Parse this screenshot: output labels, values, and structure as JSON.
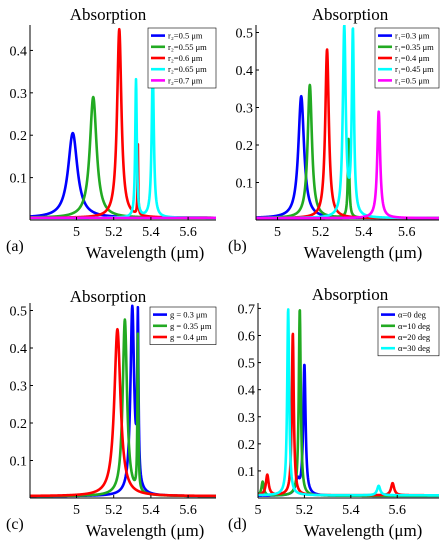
{
  "figure": {
    "panels": [
      {
        "id": "a",
        "label": "(a)"
      },
      {
        "id": "b",
        "label": "(b)"
      },
      {
        "id": "c",
        "label": "(c)"
      },
      {
        "id": "d",
        "label": "(d)"
      }
    ]
  },
  "colors": {
    "blue": "#0000ff",
    "green": "#22aa22",
    "red": "#ff0000",
    "cyan": "#00ffff",
    "magenta": "#ff00ff"
  },
  "chart_data": [
    {
      "type": "line",
      "panel": "(a)",
      "title": "Absorption",
      "xlabel": "Wavelength (μm)",
      "ylabel": "",
      "xlim": [
        4.75,
        5.75
      ],
      "ylim": [
        0,
        0.46
      ],
      "xticks": [
        5,
        5.2,
        5.4,
        5.6
      ],
      "xtick_labels": [
        "5",
        "5.2",
        "5.4",
        "5.6"
      ],
      "yticks": [
        0.1,
        0.2,
        0.3,
        0.4
      ],
      "ytick_labels": [
        "0.1",
        "0.2",
        "0.3",
        "0.4"
      ],
      "legend_position": "top-right",
      "grid": false,
      "series": [
        {
          "name": "r₂=0.5 μm",
          "color": "#0000ff",
          "peaks": [
            {
              "x": 4.98,
              "y": 0.205,
              "w": 0.03
            }
          ],
          "baseline": 0.005
        },
        {
          "name": "r₂=0.55 μm",
          "color": "#22aa22",
          "peaks": [
            {
              "x": 5.09,
              "y": 0.29,
              "w": 0.022
            }
          ],
          "baseline": 0.005
        },
        {
          "name": "r₂=0.6 μm",
          "color": "#ff0000",
          "peaks": [
            {
              "x": 5.23,
              "y": 0.45,
              "w": 0.014
            },
            {
              "x": 5.33,
              "y": 0.17,
              "w": 0.002
            }
          ],
          "baseline": 0.005
        },
        {
          "name": "r₂=0.65 μm",
          "color": "#00ffff",
          "peaks": [
            {
              "x": 5.32,
              "y": 0.33,
              "w": 0.005
            },
            {
              "x": 5.41,
              "y": 0.355,
              "w": 0.007
            }
          ],
          "baseline": 0.005
        },
        {
          "name": "r₂=0.7 μm",
          "color": "#ff00ff",
          "peaks": [
            {
              "x": 5.52,
              "y": 0.005,
              "w": 0.002
            }
          ],
          "baseline": 0.005
        }
      ]
    },
    {
      "type": "line",
      "panel": "(b)",
      "title": "Absorption",
      "xlabel": "Wavelength (μm)",
      "ylabel": "",
      "xlim": [
        4.9,
        5.75
      ],
      "ylim": [
        0,
        0.52
      ],
      "xticks": [
        5,
        5.2,
        5.4,
        5.6
      ],
      "xtick_labels": [
        "5",
        "5.2",
        "5.4",
        "5.6"
      ],
      "yticks": [
        0.1,
        0.2,
        0.3,
        0.4,
        0.5
      ],
      "ytick_labels": [
        "0.1",
        "0.2",
        "0.3",
        "0.4",
        "0.5"
      ],
      "legend_position": "top-right",
      "grid": false,
      "series": [
        {
          "name": "r₁=0.3 μm",
          "color": "#0000ff",
          "peaks": [
            {
              "x": 5.11,
              "y": 0.33,
              "w": 0.016
            }
          ],
          "baseline": 0.005
        },
        {
          "name": "r₁=0.35 μm",
          "color": "#22aa22",
          "peaks": [
            {
              "x": 5.15,
              "y": 0.36,
              "w": 0.012
            },
            {
              "x": 5.33,
              "y": 0.215,
              "w": 0.004
            }
          ],
          "baseline": 0.005
        },
        {
          "name": "r₁=0.4 μm",
          "color": "#ff0000",
          "peaks": [
            {
              "x": 5.23,
              "y": 0.455,
              "w": 0.01
            }
          ],
          "baseline": 0.005
        },
        {
          "name": "r₁=0.45 μm",
          "color": "#00ffff",
          "peaks": [
            {
              "x": 5.31,
              "y": 0.51,
              "w": 0.008
            },
            {
              "x": 5.35,
              "y": 0.495,
              "w": 0.006
            }
          ],
          "baseline": 0.005
        },
        {
          "name": "r₁=0.5 μm",
          "color": "#ff00ff",
          "peaks": [
            {
              "x": 5.47,
              "y": 0.29,
              "w": 0.008
            }
          ],
          "baseline": 0.005
        }
      ]
    },
    {
      "type": "line",
      "panel": "(c)",
      "title": "Absorption",
      "xlabel": "Wavelength (μm)",
      "ylabel": "",
      "xlim": [
        4.75,
        5.75
      ],
      "ylim": [
        0,
        0.52
      ],
      "xticks": [
        5,
        5.2,
        5.4,
        5.6
      ],
      "xtick_labels": [
        "5",
        "5.2",
        "5.4",
        "5.6"
      ],
      "yticks": [
        0.1,
        0.2,
        0.3,
        0.4,
        0.5
      ],
      "ytick_labels": [
        "0.1",
        "0.2",
        "0.3",
        "0.4",
        "0.5"
      ],
      "legend_position": "top-right",
      "grid": false,
      "series": [
        {
          "name": "g = 0.3 μm",
          "color": "#0000ff",
          "peaks": [
            {
              "x": 5.3,
              "y": 0.505,
              "w": 0.012
            },
            {
              "x": 5.33,
              "y": 0.44,
              "w": 0.004
            }
          ],
          "baseline": 0.005
        },
        {
          "name": "g = 0.35 μm",
          "color": "#22aa22",
          "peaks": [
            {
              "x": 5.26,
              "y": 0.475,
              "w": 0.014
            },
            {
              "x": 5.33,
              "y": 0.42,
              "w": 0.003
            }
          ],
          "baseline": 0.005
        },
        {
          "name": "g = 0.4 μm",
          "color": "#ff0000",
          "peaks": [
            {
              "x": 5.22,
              "y": 0.45,
              "w": 0.02
            }
          ],
          "baseline": 0.005
        }
      ]
    },
    {
      "type": "line",
      "panel": "(d)",
      "title": "Absorption",
      "xlabel": "Wavelength (μm)",
      "ylabel": "",
      "xlim": [
        5.0,
        5.78
      ],
      "ylim": [
        0,
        0.72
      ],
      "xticks": [
        5,
        5.2,
        5.4,
        5.6
      ],
      "xtick_labels": [
        "5",
        "5.2",
        "5.4",
        "5.6"
      ],
      "yticks": [
        0.1,
        0.2,
        0.3,
        0.4,
        0.5,
        0.6,
        0.7
      ],
      "ytick_labels": [
        "0.1",
        "0.2",
        "0.3",
        "0.4",
        "0.5",
        "0.6",
        "0.7"
      ],
      "legend_position": "top-right",
      "grid": false,
      "series": [
        {
          "name": "α=0 deg",
          "color": "#0000ff",
          "peaks": [
            {
              "x": 5.2,
              "y": 0.49,
              "w": 0.006
            },
            {
              "x": 5.17,
              "y": 0.06,
              "w": 0.01
            }
          ],
          "baseline": 0.008
        },
        {
          "name": "α=10 deg",
          "color": "#22aa22",
          "peaks": [
            {
              "x": 5.18,
              "y": 0.7,
              "w": 0.005
            },
            {
              "x": 5.02,
              "y": 0.06,
              "w": 0.006
            }
          ],
          "baseline": 0.008
        },
        {
          "name": "α=20 deg",
          "color": "#ff0000",
          "peaks": [
            {
              "x": 5.15,
              "y": 0.61,
              "w": 0.005
            },
            {
              "x": 5.04,
              "y": 0.085,
              "w": 0.007
            },
            {
              "x": 5.58,
              "y": 0.055,
              "w": 0.008
            }
          ],
          "baseline": 0.01
        },
        {
          "name": "α=30 deg",
          "color": "#00ffff",
          "peaks": [
            {
              "x": 5.13,
              "y": 0.7,
              "w": 0.005
            },
            {
              "x": 5.52,
              "y": 0.045,
              "w": 0.008
            }
          ],
          "baseline": 0.01
        }
      ]
    }
  ]
}
